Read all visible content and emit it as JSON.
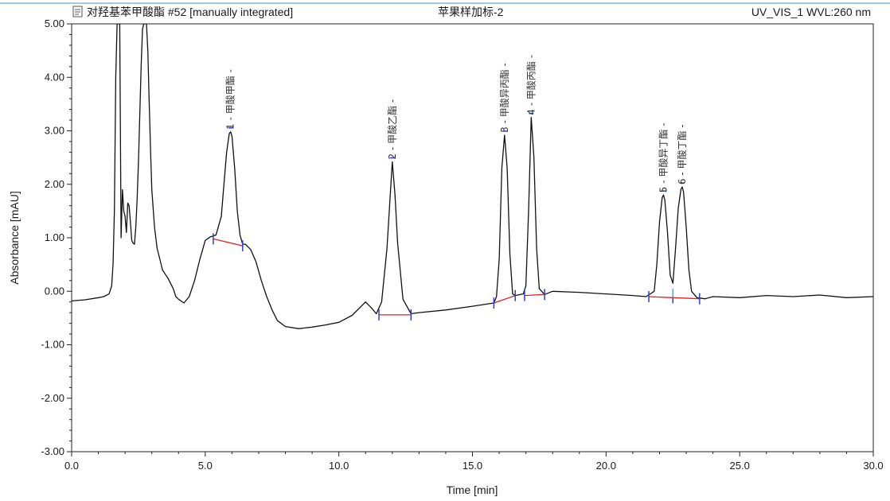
{
  "header": {
    "sample_info": "对羟基苯甲酸酯 #52 [manually integrated]",
    "sample_name": "苹果样加标-2",
    "channel": "UV_VIS_1 WVL:260 nm",
    "icon": "document-icon"
  },
  "colors": {
    "trace": "#111111",
    "baseline": "#e02020",
    "marker": "#2a3fd0",
    "marker_alt": "#22c0d0",
    "peak_number": "#2a3fd0",
    "header_rule": "#4a90c8"
  },
  "chart_data": {
    "type": "line",
    "title": "",
    "xlabel": "Time [min]",
    "ylabel": "Absorbance [mAU]",
    "xlim": [
      0,
      30
    ],
    "ylim": [
      -3,
      5
    ],
    "x_ticks": [
      "0.0",
      "5.0",
      "10.0",
      "15.0",
      "20.0",
      "25.0",
      "30.0"
    ],
    "y_ticks": [
      "-3.00",
      "-2.00",
      "-1.00",
      "0.00",
      "1.00",
      "2.00",
      "3.00",
      "4.00",
      "5.00"
    ],
    "grid": false,
    "peaks": [
      {
        "number": "1",
        "name": "甲酸甲酯",
        "label": "1 - 甲酸甲酯 -",
        "rt": 5.95,
        "height": 2.98
      },
      {
        "number": "2",
        "name": "甲酸乙酯",
        "label": "2 - 甲酸乙酯 -",
        "rt": 12.0,
        "height": 2.42
      },
      {
        "number": "3",
        "name": "甲酸异丙酯",
        "label": "3 - 甲酸异丙酯 -",
        "rt": 16.2,
        "height": 2.92
      },
      {
        "number": "4",
        "name": "甲酸丙酯",
        "label": "4 - 甲酸丙酯 -",
        "rt": 17.2,
        "height": 3.25
      },
      {
        "number": "5",
        "name": "甲酸异丁酯",
        "label": "5 - 甲酸异丁酯 -",
        "rt": 22.15,
        "height": 1.8
      },
      {
        "number": "6",
        "name": "甲酸丁酯",
        "label": "6 - 甲酸丁酯 -",
        "rt": 22.85,
        "height": 1.95
      }
    ],
    "integration_baselines": [
      {
        "x": [
          5.3,
          6.4
        ],
        "y": [
          0.98,
          0.85
        ]
      },
      {
        "x": [
          11.5,
          12.7
        ],
        "y": [
          -0.44,
          -0.44
        ]
      },
      {
        "x": [
          15.8,
          16.6
        ],
        "y": [
          -0.22,
          -0.08
        ]
      },
      {
        "x": [
          16.95,
          17.7
        ],
        "y": [
          -0.08,
          -0.06
        ]
      },
      {
        "x": [
          21.6,
          22.5
        ],
        "y": [
          -0.1,
          -0.12
        ]
      },
      {
        "x": [
          22.5,
          23.5
        ],
        "y": [
          -0.12,
          -0.14
        ]
      }
    ],
    "series": [
      {
        "x": [
          0,
          0.5,
          1.0,
          1.2,
          1.4,
          1.5,
          1.55,
          1.6,
          1.65,
          1.7,
          1.75,
          1.8,
          1.85,
          1.9,
          1.95,
          2.0,
          2.05,
          2.1,
          2.15,
          2.2,
          2.25,
          2.3,
          2.35,
          2.4,
          2.45,
          2.5,
          2.55,
          2.6,
          2.65,
          2.7,
          2.75,
          2.8,
          2.85,
          2.9,
          2.95,
          3.0,
          3.1,
          3.2,
          3.3,
          3.4,
          3.5,
          3.6,
          3.7,
          3.8,
          3.9,
          4.0,
          4.2,
          4.4,
          4.6,
          4.8,
          5.0,
          5.2,
          5.4,
          5.6,
          5.7,
          5.8,
          5.9,
          5.95,
          6.0,
          6.1,
          6.2,
          6.3,
          6.4,
          6.5,
          6.7,
          6.9,
          7.1,
          7.3,
          7.5,
          7.7,
          8.0,
          8.5,
          9.0,
          9.5,
          10.0,
          10.5,
          10.8,
          11.0,
          11.2,
          11.4,
          11.6,
          11.8,
          11.9,
          12.0,
          12.1,
          12.2,
          12.4,
          12.7,
          13.0,
          14.0,
          15.0,
          15.8,
          15.9,
          16.0,
          16.1,
          16.2,
          16.3,
          16.4,
          16.5,
          16.6,
          16.7,
          16.8,
          16.9,
          17.0,
          17.1,
          17.2,
          17.3,
          17.4,
          17.5,
          17.7,
          18.0,
          19.0,
          20.0,
          21.0,
          21.5,
          21.8,
          21.9,
          22.0,
          22.1,
          22.15,
          22.2,
          22.3,
          22.4,
          22.5,
          22.6,
          22.7,
          22.8,
          22.85,
          22.9,
          23.0,
          23.1,
          23.2,
          23.4,
          23.7,
          24.0,
          25.0,
          26.0,
          27.0,
          28.0,
          29.0,
          30.0
        ],
        "y": [
          -0.18,
          -0.16,
          -0.12,
          -0.1,
          -0.05,
          0.1,
          0.5,
          1.5,
          4.0,
          5.0,
          5.0,
          5.0,
          1.0,
          1.9,
          1.5,
          1.4,
          1.1,
          1.65,
          1.6,
          1.3,
          0.95,
          0.9,
          0.88,
          1.2,
          1.7,
          2.4,
          3.3,
          4.2,
          4.9,
          5.0,
          5.0,
          5.0,
          4.5,
          3.6,
          2.7,
          1.9,
          1.2,
          0.8,
          0.6,
          0.4,
          0.32,
          0.25,
          0.15,
          0.05,
          -0.1,
          -0.15,
          -0.22,
          -0.1,
          0.2,
          0.6,
          0.95,
          1.02,
          1.05,
          1.4,
          2.0,
          2.6,
          2.95,
          2.98,
          2.9,
          2.3,
          1.5,
          1.05,
          0.88,
          0.88,
          0.78,
          0.55,
          0.2,
          -0.1,
          -0.35,
          -0.55,
          -0.66,
          -0.7,
          -0.67,
          -0.63,
          -0.58,
          -0.45,
          -0.3,
          -0.2,
          -0.3,
          -0.42,
          -0.2,
          0.8,
          1.6,
          2.42,
          1.8,
          0.9,
          -0.15,
          -0.42,
          -0.4,
          -0.35,
          -0.28,
          -0.22,
          -0.1,
          0.6,
          2.3,
          2.92,
          2.3,
          0.7,
          -0.05,
          -0.08,
          -0.07,
          -0.06,
          -0.05,
          0.1,
          1.5,
          3.25,
          2.5,
          0.8,
          0.05,
          -0.06,
          0.0,
          -0.02,
          -0.05,
          -0.08,
          -0.1,
          0.0,
          0.5,
          1.3,
          1.75,
          1.8,
          1.7,
          1.1,
          0.3,
          0.15,
          0.8,
          1.55,
          1.9,
          1.95,
          1.85,
          1.2,
          0.4,
          0.0,
          -0.12,
          -0.14,
          -0.1,
          -0.12,
          -0.08,
          -0.1,
          -0.07,
          -0.12,
          -0.1
        ]
      }
    ]
  }
}
